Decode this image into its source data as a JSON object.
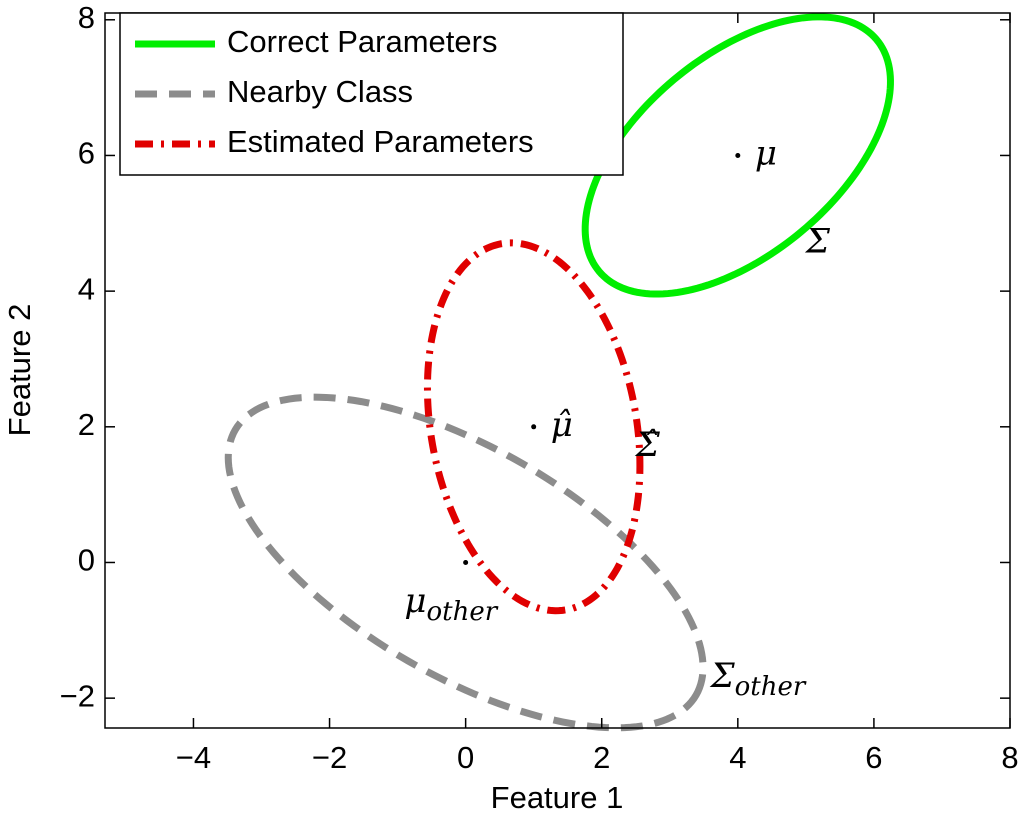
{
  "chart_data": {
    "type": "ellipse",
    "xlabel": "Feature 1",
    "ylabel": "Feature 2",
    "xlim": [
      -5.3,
      8
    ],
    "ylim": [
      -2.44,
      8.1
    ],
    "xticks": [
      {
        "value": -4,
        "label": "−4"
      },
      {
        "value": -2,
        "label": "−2"
      },
      0,
      2,
      4,
      6,
      8
    ],
    "yticks": [
      {
        "value": -2,
        "label": "−2"
      },
      0,
      2,
      4,
      6,
      8
    ],
    "legend": "upper left",
    "series": [
      {
        "name": "Correct Parameters",
        "color": "#00ee00",
        "linestyle": "solid",
        "center": [
          4,
          6
        ],
        "radii": [
          2.66,
          1.46
        ],
        "angle": 40
      },
      {
        "name": "Nearby Class",
        "color": "#8c8c8c",
        "linestyle": "dashed",
        "center": [
          0,
          0
        ],
        "radii": [
          3.91,
          1.68
        ],
        "angle": -30
      },
      {
        "name": "Estimated Parameters",
        "color": "#e00000",
        "linestyle": "dashdot",
        "center": [
          1,
          2
        ],
        "radii": [
          2.74,
          1.51
        ],
        "angle": 100
      }
    ],
    "annotations": [
      {
        "text": "μ",
        "x": 4.25,
        "y": 6
      },
      {
        "text": "Σ",
        "x": 5.0,
        "y": 4.7
      },
      {
        "text": "μ̂",
        "x": 1.25,
        "y": 2.0
      },
      {
        "text": "Σ̂",
        "x": 2.5,
        "y": 1.7
      },
      {
        "text": "μ",
        "sub": "other",
        "x": -0.9,
        "y": -0.6
      },
      {
        "text": "Σ",
        "sub": "other",
        "x": 3.6,
        "y": -1.7
      }
    ]
  }
}
